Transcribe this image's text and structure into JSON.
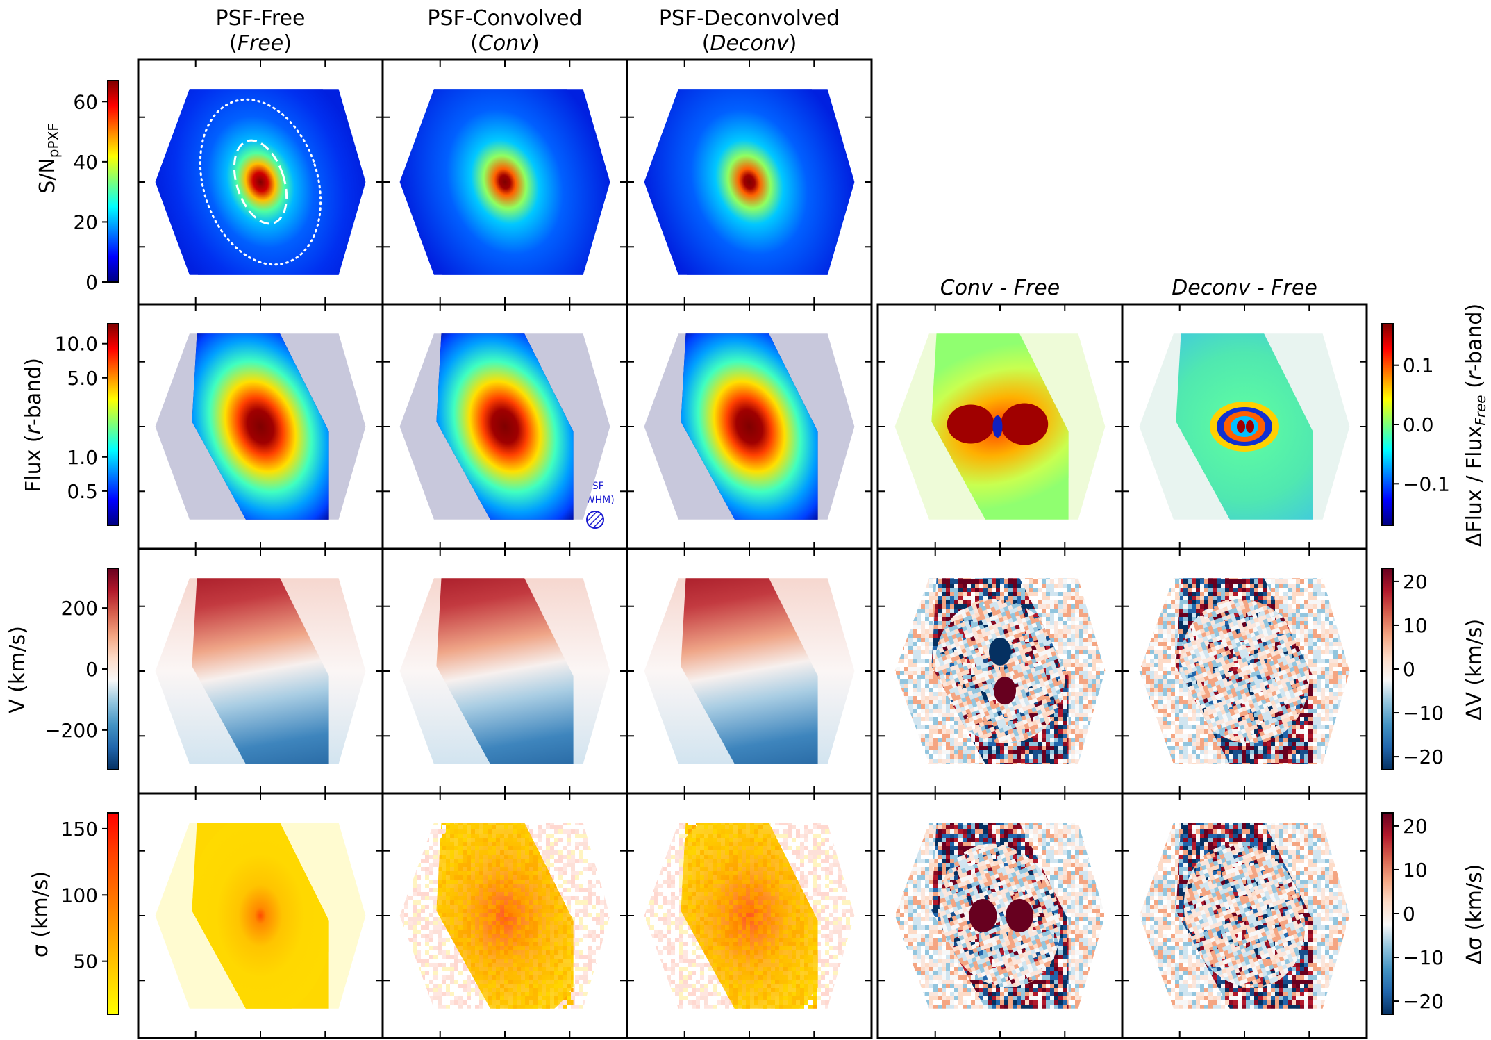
{
  "chart_data": {
    "type": "heatmap",
    "figure": "Maps of S/N, r-band flux, velocity and dispersion for PSF-Free, PSF-Convolved and PSF-Deconvolved data cubes, with residual maps",
    "columns": [
      {
        "id": "free",
        "title": "PSF-Free",
        "subtitle": "Free"
      },
      {
        "id": "conv",
        "title": "PSF-Convolved",
        "subtitle": "Conv"
      },
      {
        "id": "deconv",
        "title": "PSF-Deconvolved",
        "subtitle": "Deconv"
      },
      {
        "id": "convfree",
        "title": "Conv - Free"
      },
      {
        "id": "deconvfree",
        "title": "Deconv - Free"
      }
    ],
    "rows": [
      {
        "id": "sn",
        "label_main": "S/N",
        "label_sub": "pPXF",
        "colormap": "jet",
        "range": [
          0,
          67
        ],
        "ticks": [
          {
            "v": 0,
            "t": "0"
          },
          {
            "v": 20,
            "t": "20"
          },
          {
            "v": 40,
            "t": "40"
          },
          {
            "v": 60,
            "t": "60"
          }
        ],
        "panels": [
          "free",
          "conv",
          "deconv"
        ]
      },
      {
        "id": "flux",
        "label_pre": "Flux (",
        "label_it": "r",
        "label_post": "-band)",
        "colormap": "jet",
        "scale": "log",
        "range": [
          0.25,
          15
        ],
        "ticks": [
          {
            "v": 0.5,
            "t": "0.5"
          },
          {
            "v": 1.0,
            "t": "1.0"
          },
          {
            "v": 5.0,
            "t": "5.0"
          },
          {
            "v": 10.0,
            "t": "10.0"
          }
        ],
        "panels": [
          "free",
          "conv",
          "deconv",
          "convfree",
          "deconvfree"
        ],
        "residual": {
          "label_pre": "ΔFlux / Flux",
          "label_sub": "Free",
          "label_it": "r",
          "label_post": "-band)",
          "label_mid": " (",
          "colormap": "jet",
          "range": [
            -0.17,
            0.17
          ],
          "ticks": [
            {
              "v": -0.1,
              "t": "−0.1"
            },
            {
              "v": 0.0,
              "t": "0.0"
            },
            {
              "v": 0.1,
              "t": "0.1"
            }
          ]
        }
      },
      {
        "id": "vel",
        "label": "V (km/s)",
        "colormap": "RdBu_r",
        "range": [
          -330,
          330
        ],
        "ticks": [
          {
            "v": -200,
            "t": "−200"
          },
          {
            "v": 0,
            "t": "0"
          },
          {
            "v": 200,
            "t": "200"
          }
        ],
        "panels": [
          "free",
          "conv",
          "deconv",
          "convfree",
          "deconvfree"
        ],
        "residual": {
          "label": "ΔV (km/s)",
          "colormap": "RdBu_r",
          "range": [
            -23,
            23
          ],
          "ticks": [
            {
              "v": -20,
              "t": "−20"
            },
            {
              "v": -10,
              "t": "−10"
            },
            {
              "v": 0,
              "t": "0"
            },
            {
              "v": 10,
              "t": "10"
            },
            {
              "v": 20,
              "t": "20"
            }
          ]
        }
      },
      {
        "id": "sig",
        "label": "σ (km/s)",
        "colormap": "autumn_r",
        "range": [
          10,
          162
        ],
        "ticks": [
          {
            "v": 50,
            "t": "50"
          },
          {
            "v": 100,
            "t": "100"
          },
          {
            "v": 150,
            "t": "150"
          }
        ],
        "panels": [
          "free",
          "conv",
          "deconv",
          "convfree",
          "deconvfree"
        ],
        "residual": {
          "label": "Δσ (km/s)",
          "colormap": "RdBu_r",
          "range": [
            -23,
            23
          ],
          "ticks": [
            {
              "v": -20,
              "t": "−20"
            },
            {
              "v": -10,
              "t": "−10"
            },
            {
              "v": 0,
              "t": "0"
            },
            {
              "v": 10,
              "t": "10"
            },
            {
              "v": 20,
              "t": "20"
            }
          ]
        }
      }
    ],
    "annotations": {
      "psf_line1": "PSF",
      "psf_line2": "(FWHM)"
    }
  }
}
